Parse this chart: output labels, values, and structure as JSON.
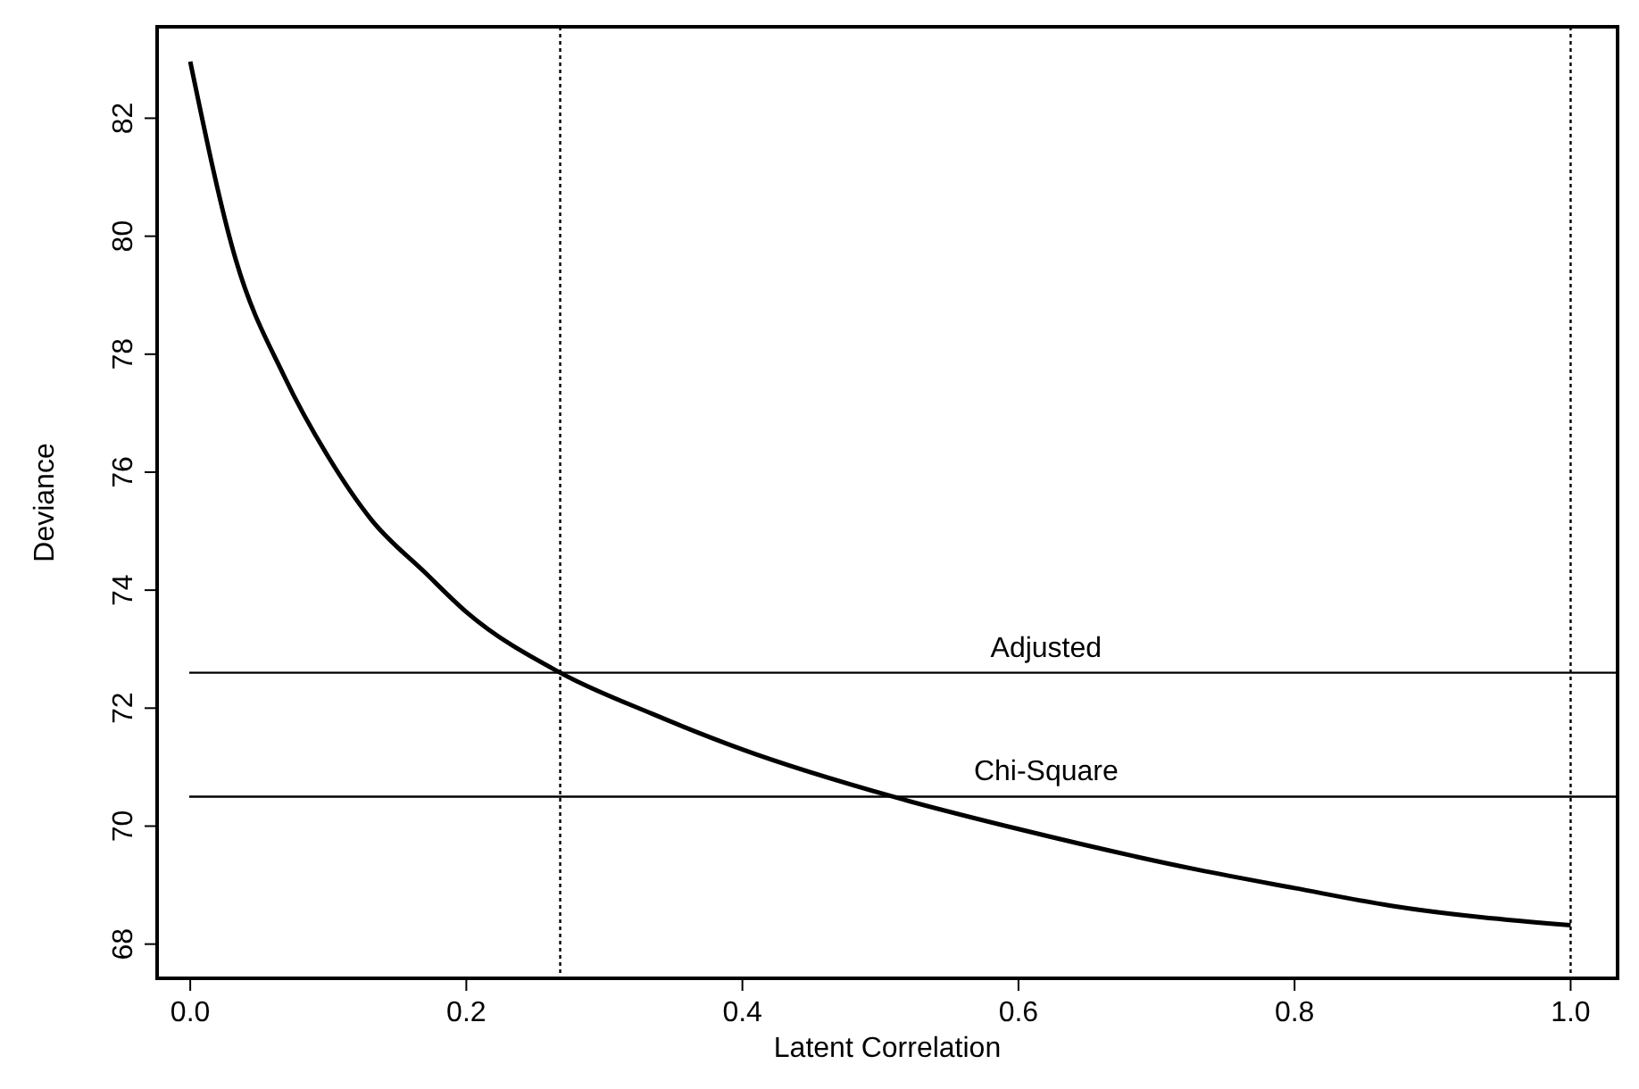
{
  "chart_data": {
    "type": "line",
    "xlabel": "Latent Correlation",
    "ylabel": "Deviance",
    "x": [
      0,
      0.033,
      0.068,
      0.1,
      0.131,
      0.17,
      0.2,
      0.268,
      0.335,
      0.4,
      0.509,
      0.6,
      0.73,
      0.8,
      0.87,
      1.0
    ],
    "series": [
      {
        "color": "#000000",
        "values": [
          82.96,
          79.6,
          77.63,
          76.26,
          75.2,
          74.3,
          73.63,
          72.6,
          71.9,
          71.3,
          70.5,
          69.95,
          69.26,
          68.95,
          68.65,
          68.32
        ]
      }
    ],
    "xlim": [
      -0.024,
      1.034
    ],
    "ylim": [
      67.42,
      83.55
    ],
    "xticks": [
      {
        "value": 0,
        "label": "0.0"
      },
      {
        "value": 0.2,
        "label": "0.2"
      },
      {
        "value": 0.4,
        "label": "0.4"
      },
      {
        "value": 0.6,
        "label": "0.6"
      },
      {
        "value": 0.8,
        "label": "0.8"
      },
      {
        "value": 1,
        "label": "1.0"
      }
    ],
    "yticks": [
      68,
      70,
      72,
      74,
      76,
      78,
      80,
      82
    ],
    "ref_lines": [
      {
        "axis": "y",
        "value": 72.6,
        "label": "Adjusted",
        "color": "#000000",
        "line_style": "solid"
      },
      {
        "axis": "y",
        "value": 70.5,
        "label": "Chi-Square",
        "color": "#000000",
        "line_style": "solid"
      },
      {
        "axis": "x",
        "value": 0.268,
        "color": "#000000",
        "line_style": "dotted"
      },
      {
        "axis": "x",
        "value": 1.0,
        "color": "#000000",
        "line_style": "dotted"
      }
    ],
    "grid": false,
    "marker": "none",
    "line_style": "solid"
  }
}
